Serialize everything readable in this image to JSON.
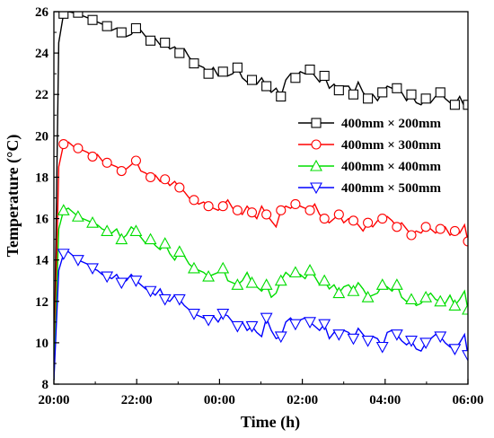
{
  "chart_data": {
    "type": "line",
    "xlabel": "Time (h)",
    "ylabel": "Temperature (°C)",
    "xlim": [
      "20:00",
      "06:00"
    ],
    "ylim": [
      8,
      26
    ],
    "x_ticks": [
      "20:00",
      "22:00",
      "00:00",
      "02:00",
      "04:00",
      "06:00"
    ],
    "y_ticks": [
      8,
      10,
      12,
      14,
      16,
      18,
      20,
      22,
      24,
      26
    ],
    "grid": false,
    "legend_position": "top-right",
    "x": [
      "20:00",
      "20:07",
      "20:14",
      "20:21",
      "20:28",
      "20:35",
      "20:42",
      "20:49",
      "20:56",
      "21:03",
      "21:10",
      "21:17",
      "21:24",
      "21:31",
      "21:38",
      "21:45",
      "21:52",
      "21:59",
      "22:06",
      "22:13",
      "22:20",
      "22:27",
      "22:34",
      "22:41",
      "22:48",
      "22:55",
      "23:02",
      "23:09",
      "23:16",
      "23:23",
      "23:30",
      "23:37",
      "23:44",
      "23:51",
      "23:58",
      "00:05",
      "00:12",
      "00:19",
      "00:26",
      "00:33",
      "00:40",
      "00:47",
      "00:54",
      "01:01",
      "01:08",
      "01:15",
      "01:22",
      "01:29",
      "01:36",
      "01:43",
      "01:50",
      "01:57",
      "02:04",
      "02:11",
      "02:18",
      "02:25",
      "02:32",
      "02:39",
      "02:46",
      "02:53",
      "03:00",
      "03:07",
      "03:14",
      "03:21",
      "03:28",
      "03:35",
      "03:42",
      "03:49",
      "03:56",
      "04:03",
      "04:10",
      "04:17",
      "04:24",
      "04:31",
      "04:38",
      "04:45",
      "04:52",
      "04:59",
      "05:06",
      "05:13",
      "05:20",
      "05:27",
      "05:34",
      "05:41",
      "05:48",
      "05:55",
      "06:00"
    ],
    "series": [
      {
        "name": "400mm × 200mm",
        "color": "#000000",
        "marker": "square",
        "values": [
          8.2,
          24.5,
          25.9,
          26.0,
          25.95,
          25.95,
          25.8,
          25.7,
          25.6,
          25.5,
          25.4,
          25.3,
          25.1,
          25.2,
          25.0,
          24.8,
          24.9,
          25.2,
          25.1,
          24.8,
          24.6,
          24.7,
          24.4,
          24.5,
          24.2,
          24.3,
          24.0,
          24.2,
          23.8,
          23.5,
          23.4,
          23.3,
          23.0,
          23.3,
          22.9,
          23.1,
          22.9,
          23.0,
          23.3,
          22.8,
          22.6,
          22.7,
          22.5,
          22.8,
          22.4,
          22.1,
          22.3,
          21.9,
          22.7,
          23.0,
          22.8,
          23.1,
          23.0,
          23.2,
          22.9,
          22.6,
          22.9,
          22.3,
          22.5,
          22.2,
          22.4,
          22.4,
          22.0,
          22.6,
          22.1,
          21.8,
          22.0,
          21.7,
          22.1,
          22.4,
          22.3,
          22.3,
          22.1,
          21.7,
          22.0,
          21.6,
          21.5,
          21.8,
          21.6,
          21.9,
          22.1,
          21.8,
          21.6,
          21.5,
          21.9,
          21.4,
          21.5
        ]
      },
      {
        "name": "400mm × 300mm",
        "color": "#ff0000",
        "marker": "circle",
        "values": [
          8.2,
          18.5,
          19.6,
          19.7,
          19.5,
          19.4,
          19.3,
          19.2,
          19.0,
          19.1,
          18.8,
          18.7,
          18.6,
          18.5,
          18.3,
          18.4,
          18.6,
          18.8,
          18.3,
          18.2,
          18.0,
          18.1,
          17.8,
          17.9,
          17.6,
          17.8,
          17.5,
          17.3,
          17.0,
          16.9,
          16.7,
          16.8,
          16.6,
          16.5,
          16.4,
          16.6,
          16.9,
          16.5,
          16.4,
          16.2,
          16.6,
          16.3,
          16.0,
          16.6,
          16.2,
          15.9,
          15.6,
          16.4,
          16.6,
          16.5,
          16.7,
          16.6,
          16.5,
          16.4,
          16.7,
          16.2,
          16.0,
          15.8,
          16.0,
          16.2,
          15.8,
          16.0,
          15.9,
          15.7,
          15.4,
          15.8,
          15.6,
          15.9,
          16.0,
          16.1,
          15.9,
          15.6,
          15.8,
          15.5,
          15.2,
          15.4,
          15.3,
          15.6,
          15.5,
          15.3,
          15.5,
          15.6,
          15.2,
          15.4,
          15.3,
          15.7,
          14.9
        ]
      },
      {
        "name": "400mm × 400mm",
        "color": "#00dd00",
        "marker": "triangle-up",
        "values": [
          8.2,
          15.5,
          16.4,
          16.5,
          16.3,
          16.1,
          16.0,
          15.9,
          15.8,
          15.7,
          15.5,
          15.4,
          15.3,
          15.5,
          15.0,
          15.2,
          15.6,
          15.4,
          15.1,
          14.8,
          15.0,
          14.7,
          14.5,
          14.8,
          14.3,
          14.0,
          14.4,
          14.2,
          13.8,
          13.6,
          13.5,
          13.4,
          13.2,
          13.3,
          13.4,
          13.6,
          13.0,
          12.9,
          12.8,
          13.0,
          13.4,
          12.9,
          12.7,
          12.5,
          12.8,
          12.2,
          12.4,
          13.0,
          13.4,
          13.2,
          13.4,
          13.3,
          13.1,
          13.5,
          13.2,
          12.8,
          13.0,
          12.6,
          12.8,
          12.4,
          12.7,
          12.8,
          12.5,
          12.9,
          12.6,
          12.2,
          12.3,
          12.4,
          12.8,
          12.7,
          12.5,
          12.8,
          12.2,
          12.0,
          12.1,
          11.8,
          11.9,
          12.2,
          12.4,
          12.1,
          12.0,
          11.9,
          12.3,
          11.8,
          12.1,
          12.5,
          11.6
        ]
      },
      {
        "name": "400mm × 500mm",
        "color": "#0000ff",
        "marker": "triangle-down",
        "values": [
          8.2,
          13.5,
          14.3,
          14.4,
          14.2,
          14.0,
          13.9,
          13.8,
          13.6,
          13.5,
          13.3,
          13.2,
          13.1,
          13.3,
          12.9,
          13.0,
          13.3,
          13.0,
          12.8,
          12.6,
          12.5,
          12.3,
          12.6,
          12.1,
          12.0,
          12.3,
          12.1,
          11.8,
          11.6,
          11.4,
          11.3,
          11.2,
          11.1,
          11.3,
          11.0,
          11.4,
          11.3,
          11.0,
          10.8,
          11.0,
          10.6,
          10.8,
          10.5,
          10.3,
          11.2,
          10.6,
          10.2,
          10.3,
          11.0,
          11.2,
          10.9,
          11.1,
          11.2,
          11.0,
          10.8,
          10.6,
          10.9,
          10.2,
          10.5,
          10.4,
          10.6,
          10.5,
          10.2,
          10.7,
          10.4,
          10.1,
          10.3,
          10.2,
          9.8,
          10.5,
          10.6,
          10.4,
          10.1,
          9.9,
          10.1,
          9.7,
          9.6,
          10.0,
          10.2,
          10.4,
          10.3,
          10.0,
          9.8,
          9.7,
          10.0,
          10.4,
          9.4
        ]
      }
    ]
  }
}
